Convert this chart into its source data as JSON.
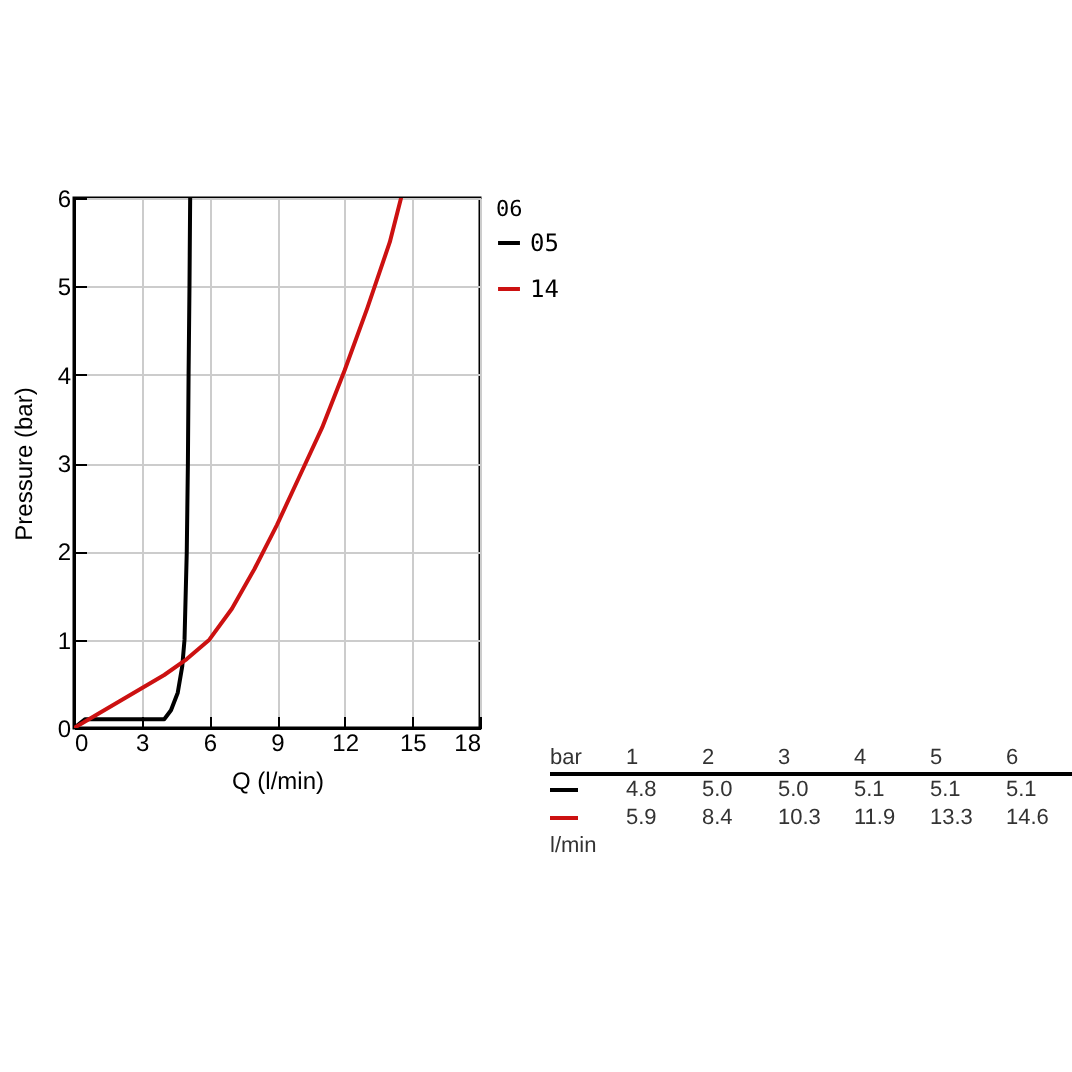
{
  "chart_data": {
    "type": "line",
    "xlabel": "Q (l/min)",
    "ylabel": "Pressure (bar)",
    "legend_title": "06",
    "xlim": [
      0,
      18
    ],
    "xticks": [
      0,
      3,
      6,
      9,
      12,
      15,
      18
    ],
    "ylim": [
      0,
      6
    ],
    "yticks": [
      0,
      1,
      2,
      3,
      4,
      5,
      6
    ],
    "grid": true,
    "legend": "top right",
    "marker": "none",
    "line_style": "solid",
    "series": [
      {
        "name": "05",
        "color": "#000000",
        "x": [
          0,
          0.5,
          4,
          4.3,
          4.6,
          4.8,
          4.9,
          5.0,
          5.05,
          5.08,
          5.12,
          5.15
        ],
        "values": [
          0,
          0.1,
          0.1,
          0.2,
          0.4,
          0.7,
          1,
          2,
          3,
          4,
          5,
          6
        ]
      },
      {
        "name": "14",
        "color": "#cc1111",
        "x": [
          0,
          1,
          2,
          3,
          4,
          5,
          6,
          7,
          8,
          9,
          10,
          11,
          12,
          13,
          14,
          14.5
        ],
        "values": [
          0,
          0.15,
          0.3,
          0.45,
          0.6,
          0.78,
          1,
          1.35,
          1.8,
          2.3,
          2.85,
          3.4,
          4.05,
          4.75,
          5.5,
          6
        ]
      }
    ],
    "annotations": [
      "bar",
      "1",
      "2",
      "3",
      "4",
      "5",
      "6",
      "4.8",
      "5.0",
      "5.0",
      "5.1",
      "5.1",
      "5.1",
      "5.9",
      "8.4",
      "10.3",
      "11.9",
      "13.3",
      "14.6",
      "l/min"
    ]
  }
}
